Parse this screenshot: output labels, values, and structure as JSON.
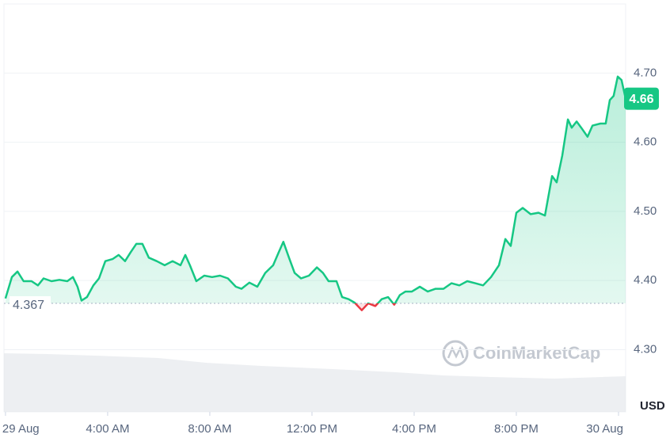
{
  "chart_data": {
    "type": "line",
    "x": [
      0,
      0.25,
      0.47,
      0.71,
      1.02,
      1.27,
      1.49,
      1.8,
      2.11,
      2.42,
      2.64,
      2.82,
      2.98,
      3.19,
      3.44,
      3.66,
      3.91,
      4.19,
      4.43,
      4.68,
      4.9,
      5.12,
      5.36,
      5.61,
      5.92,
      6.23,
      6.54,
      6.85,
      7.04,
      7.22,
      7.47,
      7.78,
      8.09,
      8.4,
      8.71,
      9.02,
      9.24,
      9.55,
      9.86,
      10.17,
      10.48,
      10.7,
      10.88,
      11.1,
      11.32,
      11.57,
      11.88,
      12.19,
      12.43,
      12.65,
      12.96,
      13.18,
      13.43,
      13.67,
      13.95,
      14.2,
      14.48,
      14.73,
      14.98,
      15.22,
      15.44,
      15.66,
      15.91,
      16.22,
      16.53,
      16.84,
      17.15,
      17.46,
      17.77,
      18.08,
      18.39,
      18.7,
      19.01,
      19.32,
      19.57,
      19.78,
      20.0,
      20.25,
      20.56,
      20.87,
      21.12,
      21.4,
      21.58,
      21.8,
      22.02,
      22.17,
      22.36,
      22.54,
      22.79,
      22.98,
      23.29,
      23.5,
      23.66,
      23.81,
      23.97,
      24.12,
      24.28
    ],
    "values": [
      4.374,
      4.405,
      4.413,
      4.399,
      4.399,
      4.393,
      4.403,
      4.399,
      4.401,
      4.399,
      4.405,
      4.391,
      4.371,
      4.376,
      4.393,
      4.403,
      4.428,
      4.431,
      4.437,
      4.428,
      4.441,
      4.453,
      4.453,
      4.433,
      4.428,
      4.422,
      4.428,
      4.422,
      4.437,
      4.422,
      4.399,
      4.407,
      4.405,
      4.407,
      4.403,
      4.391,
      4.388,
      4.397,
      4.391,
      4.411,
      4.422,
      4.441,
      4.456,
      4.433,
      4.411,
      4.403,
      4.407,
      4.419,
      4.411,
      4.399,
      4.399,
      4.376,
      4.373,
      4.368,
      4.357,
      4.367,
      4.363,
      4.373,
      4.376,
      4.365,
      4.379,
      4.384,
      4.384,
      4.391,
      4.384,
      4.388,
      4.388,
      4.396,
      4.393,
      4.399,
      4.396,
      4.393,
      4.405,
      4.422,
      4.46,
      4.45,
      4.498,
      4.505,
      4.496,
      4.498,
      4.494,
      4.551,
      4.542,
      4.581,
      4.633,
      4.621,
      4.63,
      4.621,
      4.608,
      4.624,
      4.627,
      4.627,
      4.661,
      4.667,
      4.695,
      4.69,
      4.663
    ],
    "color_up": "#16c784",
    "color_down": "#ea3943",
    "baseline": {
      "value": 4.367,
      "label": "4.367"
    },
    "current_price": {
      "value": 4.663,
      "label": "4.66"
    },
    "xlim": [
      -0.06,
      24.28
    ],
    "ylim": [
      4.21,
      4.8
    ],
    "xticks": [
      {
        "value": 0,
        "label": "29 Aug"
      },
      {
        "value": 4,
        "label": "4:00 AM"
      },
      {
        "value": 8,
        "label": "8:00 AM"
      },
      {
        "value": 12,
        "label": "12:00 PM"
      },
      {
        "value": 16,
        "label": "4:00 PM"
      },
      {
        "value": 20,
        "label": "8:00 PM"
      },
      {
        "value": 24,
        "label": "30 Aug"
      }
    ],
    "yticks": [
      {
        "value": 4.3,
        "label": "4.30"
      },
      {
        "value": 4.4,
        "label": "4.40"
      },
      {
        "value": 4.5,
        "label": "4.50"
      },
      {
        "value": 4.6,
        "label": "4.60"
      },
      {
        "value": 4.7,
        "label": "4.70"
      }
    ],
    "grid": true,
    "unit": "USD",
    "watermark": "CoinMarketCap"
  }
}
